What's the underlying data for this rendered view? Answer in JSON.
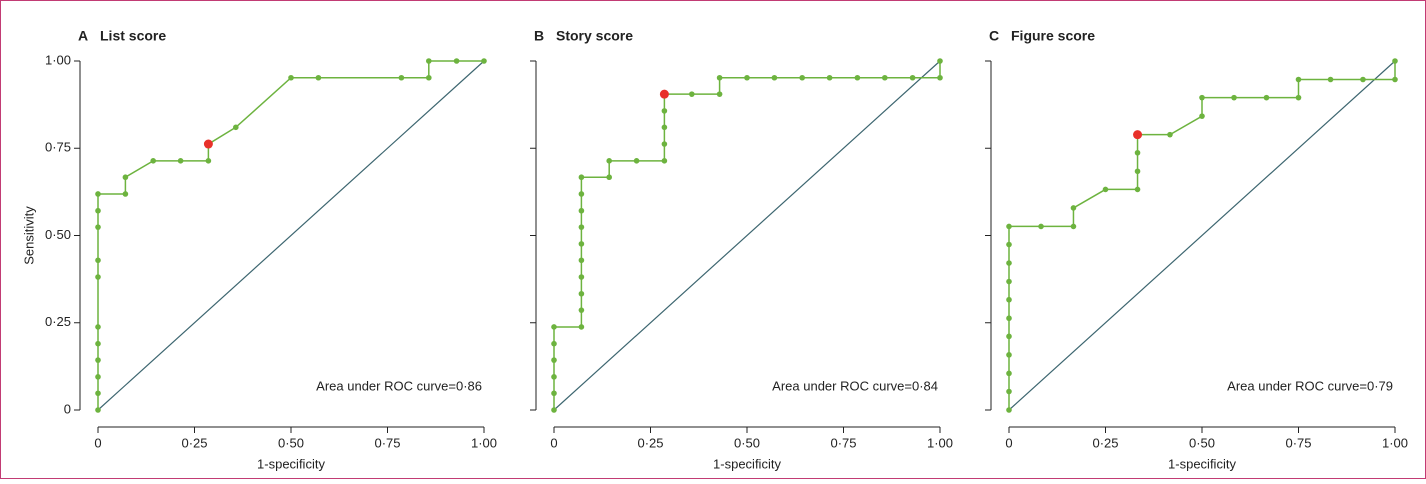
{
  "chart_data": [
    {
      "type": "line",
      "label": "A",
      "title": "List score",
      "xlabel": "1-specificity",
      "ylabel": "Sensitivity",
      "annotation": "Area under ROC curve=0·86",
      "xlim": [
        0,
        1
      ],
      "ylim": [
        0,
        1
      ],
      "ytick_labels": true,
      "xticks": [
        0,
        {
          "value": 0.25,
          "label": "0·25"
        },
        {
          "value": 0.5,
          "label": "0·50"
        },
        {
          "value": 0.75,
          "label": "0·75"
        },
        {
          "value": 1,
          "label": "1·00"
        }
      ],
      "yticks": [
        0,
        {
          "value": 0.25,
          "label": "0·25"
        },
        {
          "value": 0.5,
          "label": "0·50"
        },
        {
          "value": 0.75,
          "label": "0·75"
        },
        {
          "value": 1,
          "label": "1·00"
        }
      ],
      "diagonal_color": "#3d6670",
      "series": [
        {
          "color": "#6db33f",
          "line": true,
          "x": [
            0,
            0,
            0,
            0,
            0,
            0,
            0,
            0,
            0,
            0,
            0,
            0.071,
            0.071,
            0.143,
            0.214,
            0.286,
            0.286,
            0.357,
            0.5,
            0.571,
            0.786,
            0.857,
            0.857,
            0.929,
            1
          ],
          "values": [
            0,
            0.048,
            0.095,
            0.143,
            0.19,
            0.238,
            0.381,
            0.429,
            0.524,
            0.571,
            0.619,
            0.619,
            0.667,
            0.714,
            0.714,
            0.714,
            0.762,
            0.81,
            0.952,
            0.952,
            0.952,
            0.952,
            1,
            1,
            1
          ]
        },
        {
          "color": "#e8312a",
          "line": false,
          "x": [
            0.286
          ],
          "values": [
            0.762
          ]
        }
      ]
    },
    {
      "type": "line",
      "label": "B",
      "title": "Story score",
      "xlabel": "1-specificity",
      "annotation": "Area under ROC curve=0·84",
      "xlim": [
        0,
        1
      ],
      "ylim": [
        0,
        1
      ],
      "ytick_labels": false,
      "xticks": [
        0,
        {
          "value": 0.25,
          "label": "0·25"
        },
        {
          "value": 0.5,
          "label": "0·50"
        },
        {
          "value": 0.75,
          "label": "0·75"
        },
        {
          "value": 1,
          "label": "1·00"
        }
      ],
      "yticks": [
        0,
        0.25,
        0.5,
        0.75,
        1
      ],
      "diagonal_color": "#3d6670",
      "series": [
        {
          "color": "#6db33f",
          "line": true,
          "x": [
            0,
            0,
            0,
            0,
            0,
            0,
            0.071,
            0.071,
            0.071,
            0.071,
            0.071,
            0.071,
            0.071,
            0.071,
            0.071,
            0.071,
            0.143,
            0.143,
            0.214,
            0.286,
            0.286,
            0.286,
            0.286,
            0.286,
            0.357,
            0.429,
            0.429,
            0.5,
            0.571,
            0.643,
            0.714,
            0.786,
            0.857,
            0.929,
            1,
            1
          ],
          "values": [
            0,
            0.048,
            0.095,
            0.143,
            0.19,
            0.238,
            0.238,
            0.286,
            0.333,
            0.381,
            0.429,
            0.476,
            0.524,
            0.571,
            0.619,
            0.667,
            0.667,
            0.714,
            0.714,
            0.714,
            0.762,
            0.81,
            0.857,
            0.905,
            0.905,
            0.905,
            0.952,
            0.952,
            0.952,
            0.952,
            0.952,
            0.952,
            0.952,
            0.952,
            0.952,
            1
          ]
        },
        {
          "color": "#e8312a",
          "line": false,
          "x": [
            0.286
          ],
          "values": [
            0.905
          ]
        }
      ]
    },
    {
      "type": "line",
      "label": "C",
      "title": "Figure score",
      "xlabel": "1-specificity",
      "annotation": "Area under ROC curve=0·79",
      "xlim": [
        0,
        1
      ],
      "ylim": [
        0,
        1
      ],
      "ytick_labels": false,
      "xticks": [
        0,
        {
          "value": 0.25,
          "label": "0·25"
        },
        {
          "value": 0.5,
          "label": "0·50"
        },
        {
          "value": 0.75,
          "label": "0·75"
        },
        {
          "value": 1,
          "label": "1·00"
        }
      ],
      "yticks": [
        0,
        0.25,
        0.5,
        0.75,
        1
      ],
      "diagonal_color": "#3d6670",
      "series": [
        {
          "color": "#6db33f",
          "line": true,
          "x": [
            0,
            0,
            0,
            0,
            0,
            0,
            0,
            0,
            0,
            0,
            0,
            0.083,
            0.167,
            0.167,
            0.25,
            0.333,
            0.333,
            0.333,
            0.333,
            0.417,
            0.5,
            0.5,
            0.583,
            0.667,
            0.75,
            0.75,
            0.833,
            0.917,
            1,
            1
          ],
          "values": [
            0,
            0.053,
            0.105,
            0.158,
            0.211,
            0.263,
            0.316,
            0.368,
            0.421,
            0.474,
            0.526,
            0.526,
            0.526,
            0.579,
            0.632,
            0.632,
            0.684,
            0.737,
            0.789,
            0.789,
            0.842,
            0.895,
            0.895,
            0.895,
            0.895,
            0.947,
            0.947,
            0.947,
            0.947,
            1
          ]
        },
        {
          "color": "#e8312a",
          "line": false,
          "x": [
            0.333
          ],
          "values": [
            0.789
          ]
        }
      ]
    }
  ]
}
